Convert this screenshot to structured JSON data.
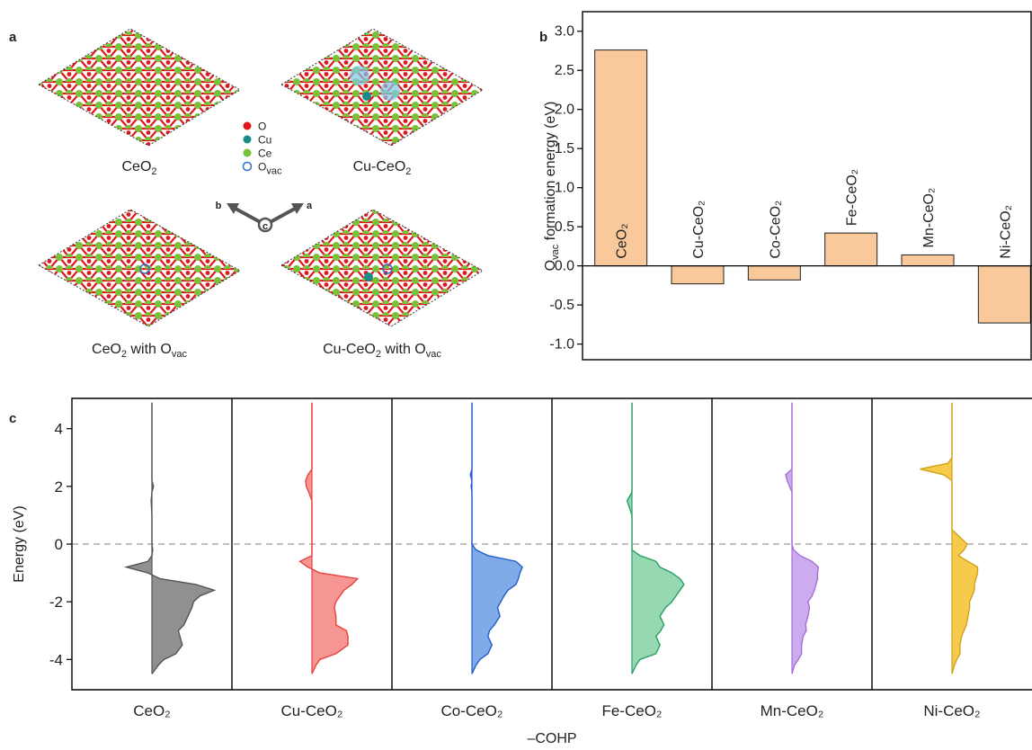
{
  "panel_a": {
    "label": "a",
    "structures": [
      {
        "label": [
          "CeO",
          "2"
        ]
      },
      {
        "label": [
          "Cu-CeO",
          "2"
        ]
      },
      {
        "label": [
          "CeO",
          "2",
          " with O",
          "vac"
        ]
      },
      {
        "label": [
          "Cu-CeO",
          "2",
          " with O",
          "vac"
        ]
      }
    ],
    "legend": [
      {
        "label": [
          "O"
        ],
        "color": "#e0161d",
        "hollow": false
      },
      {
        "label": [
          "Cu"
        ],
        "color": "#1a8a8a",
        "hollow": false
      },
      {
        "label": [
          "Ce"
        ],
        "color": "#78c23a",
        "hollow": false
      },
      {
        "label": [
          "O",
          "vac"
        ],
        "color": "#2a6fc9",
        "hollow": true
      }
    ],
    "axes": [
      "b",
      "a",
      "c"
    ]
  },
  "chart_data": [
    {
      "type": "bar",
      "panel_label": "b",
      "ylabel": [
        "O",
        "vac",
        " formation energy (eV)"
      ],
      "categories": [
        "CeO₂",
        "Cu-CeO₂",
        "Co-CeO₂",
        "Fe-CeO₂",
        "Mn-CeO₂",
        "Ni-CeO₂"
      ],
      "category_colors": [
        "#333333",
        "#e8413c",
        "#1f5fc9",
        "#2ba064",
        "#a470d8",
        "#d4a017"
      ],
      "values": [
        2.76,
        -0.23,
        -0.18,
        0.42,
        0.14,
        -0.73
      ],
      "color": "#f9c99b",
      "ylim": [
        -1.2,
        3.25
      ],
      "yticks": [
        {
          "value": -1,
          "label": "-1.0"
        },
        -0.5,
        {
          "value": 0,
          "label": "0.0"
        },
        0.5,
        {
          "value": 1,
          "label": "1.0"
        },
        1.5,
        {
          "value": 2,
          "label": "2.0"
        },
        2.5,
        {
          "value": 3,
          "label": "3.0"
        }
      ]
    },
    {
      "type": "area",
      "panel_label": "c",
      "ylabel": "Energy (eV)",
      "xlabel": "–COHP",
      "y": [
        -4.5,
        -4.2,
        -4,
        -3.8,
        -3.5,
        -3.2,
        -3,
        -2.8,
        -2.5,
        -2.2,
        -2,
        -1.8,
        -1.6,
        -1.4,
        -1.2,
        -1,
        -0.8,
        -0.6,
        -0.4,
        -0.2,
        0,
        0.5,
        1,
        1.5,
        1.8,
        2,
        2.2,
        2.4,
        2.6,
        2.8,
        3,
        4,
        4.9
      ],
      "xlim": [
        -1,
        1
      ],
      "ylim": [
        -5.05,
        5.05
      ],
      "yticks": [
        -4,
        -2,
        0,
        2,
        4
      ],
      "series": [
        {
          "name": "CeO₂",
          "color": "#555555",
          "fill": "#8a8a8a",
          "values": [
            0,
            0.08,
            0.15,
            0.3,
            0.38,
            0.35,
            0.33,
            0.4,
            0.45,
            0.5,
            0.52,
            0.6,
            0.78,
            0.55,
            0.1,
            -0.05,
            -0.32,
            -0.05,
            0,
            0.01,
            0,
            0,
            0,
            -0.01,
            0,
            0.02,
            0,
            0,
            0,
            0,
            0,
            0,
            0
          ]
        },
        {
          "name": "Cu-CeO₂",
          "color": "#e8413c",
          "fill": "#f4908c",
          "values": [
            0,
            0.05,
            0.1,
            0.3,
            0.45,
            0.45,
            0.43,
            0.3,
            0.3,
            0.28,
            0.3,
            0.35,
            0.4,
            0.5,
            0.57,
            0.1,
            -0.05,
            -0.15,
            0,
            0,
            0,
            0,
            0,
            0,
            -0.04,
            -0.07,
            -0.08,
            -0.05,
            0,
            0,
            0,
            0,
            0
          ]
        },
        {
          "name": "Co-CeO₂",
          "color": "#1f5fc9",
          "fill": "#7aa5e8",
          "values": [
            0,
            0.05,
            0.1,
            0.2,
            0.25,
            0.2,
            0.22,
            0.28,
            0.35,
            0.32,
            0.36,
            0.4,
            0.45,
            0.55,
            0.58,
            0.6,
            0.63,
            0.55,
            0.2,
            0.05,
            0,
            0,
            0,
            0,
            0,
            -0.01,
            0,
            -0.02,
            0,
            0,
            0,
            0,
            0
          ]
        },
        {
          "name": "Fe-CeO₂",
          "color": "#2ba064",
          "fill": "#8fd6ae",
          "values": [
            0,
            0.05,
            0.1,
            0.3,
            0.35,
            0.3,
            0.36,
            0.4,
            0.35,
            0.42,
            0.5,
            0.55,
            0.6,
            0.65,
            0.6,
            0.5,
            0.35,
            0.3,
            0.1,
            0,
            0,
            0,
            0,
            -0.06,
            0,
            0,
            0,
            0,
            0,
            0,
            0,
            0,
            0
          ]
        },
        {
          "name": "Mn-CeO₂",
          "color": "#a470d8",
          "fill": "#c9a6ee",
          "values": [
            0,
            0.03,
            0.08,
            0.12,
            0.12,
            0.14,
            0.18,
            0.17,
            0.2,
            0.22,
            0.2,
            0.25,
            0.28,
            0.3,
            0.32,
            0.32,
            0.33,
            0.25,
            0.1,
            0.02,
            0,
            0,
            0,
            0,
            0,
            -0.03,
            -0.06,
            -0.08,
            0,
            0,
            0,
            0,
            0
          ]
        },
        {
          "name": "Ni-CeO₂",
          "color": "#d4a017",
          "fill": "#f5c842",
          "values": [
            0,
            0.03,
            0.06,
            0.1,
            0.1,
            0.12,
            0.15,
            0.18,
            0.2,
            0.22,
            0.22,
            0.25,
            0.28,
            0.28,
            0.3,
            0.32,
            0.32,
            0.2,
            0.08,
            0.15,
            0.19,
            0,
            0,
            0,
            0,
            0,
            0,
            -0.1,
            -0.4,
            -0.05,
            0,
            0,
            0
          ]
        }
      ]
    }
  ]
}
